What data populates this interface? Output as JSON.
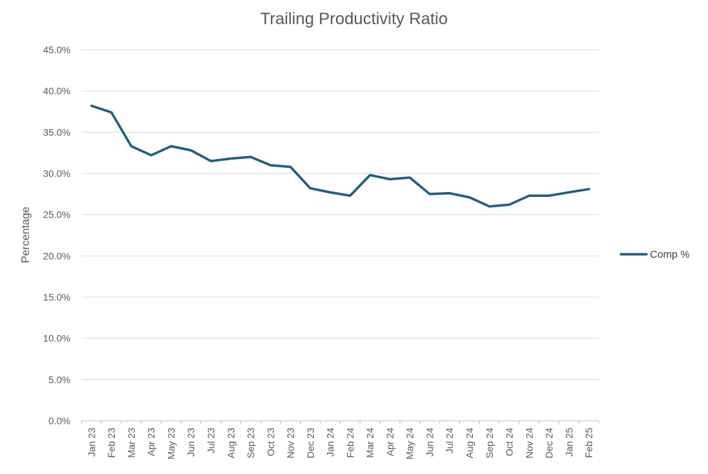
{
  "chart_data": {
    "type": "line",
    "title": "Trailing Productivity Ratio",
    "xlabel": "",
    "ylabel": "Percentage",
    "ylim": [
      0,
      45
    ],
    "y_ticks": [
      "0.0%",
      "5.0%",
      "10.0%",
      "15.0%",
      "20.0%",
      "25.0%",
      "30.0%",
      "35.0%",
      "40.0%",
      "45.0%"
    ],
    "y_tick_values": [
      0,
      5,
      10,
      15,
      20,
      25,
      30,
      35,
      40,
      45
    ],
    "grid": true,
    "legend_position": "right",
    "categories": [
      "Jan 23",
      "Feb 23",
      "Mar 23",
      "Apr 23",
      "May 23",
      "Jun 23",
      "Jul 23",
      "Aug 23",
      "Sep 23",
      "Oct 23",
      "Nov 23",
      "Dec 23",
      "Jan 24",
      "Feb 24",
      "Mar 24",
      "Apr 24",
      "May 24",
      "Jun 24",
      "Jul 24",
      "Aug 24",
      "Sep 24",
      "Oct 24",
      "Nov 24",
      "Dec 24",
      "Jan 25",
      "Feb 25"
    ],
    "series": [
      {
        "name": "Comp %",
        "color": "#1f5f7f",
        "values": [
          38.2,
          37.4,
          33.3,
          32.2,
          33.3,
          32.8,
          31.5,
          31.8,
          32.0,
          31.0,
          30.8,
          28.2,
          27.7,
          27.3,
          29.8,
          29.3,
          29.5,
          27.5,
          27.6,
          27.1,
          26.0,
          26.2,
          27.3,
          27.3,
          27.7,
          28.1
        ]
      }
    ]
  }
}
